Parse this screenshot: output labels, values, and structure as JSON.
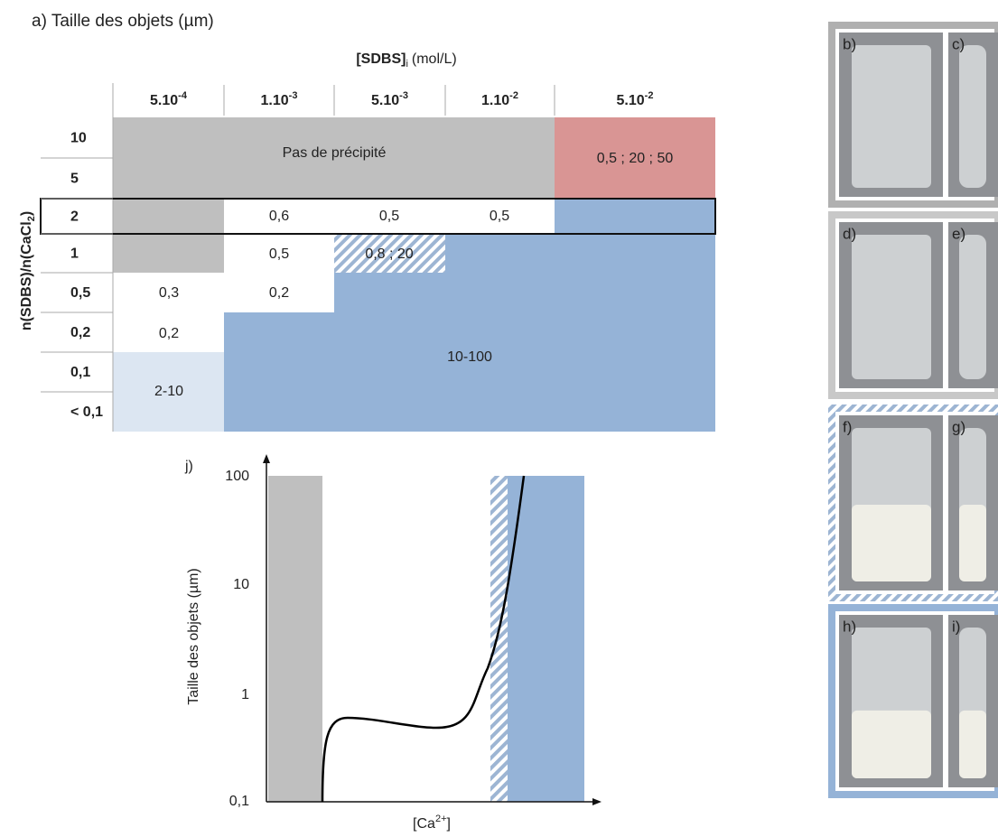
{
  "table": {
    "title": "a) Taille des objets (µm)",
    "column_header": {
      "name": "[SDBS]",
      "subscript": "i",
      "unit": "(mol/L)"
    },
    "columns": [
      {
        "mantissa": "5.10",
        "exponent": "-4"
      },
      {
        "mantissa": "1.10",
        "exponent": "-3"
      },
      {
        "mantissa": "5.10",
        "exponent": "-3"
      },
      {
        "mantissa": "1.10",
        "exponent": "-2"
      },
      {
        "mantissa": "5.10",
        "exponent": "-2"
      }
    ],
    "row_header": {
      "text": "n(SDBS)/n(CaCl",
      "subscript": "2",
      "end": ")"
    },
    "rows": [
      "10",
      "5",
      "2",
      "1",
      "0,5",
      "0,2",
      "0,1",
      "< 0,1"
    ],
    "cells": [
      "Pas de précipité",
      "0,5 ; 20 ; 50",
      "0,6",
      "0,5",
      "0,5",
      "0,5",
      "0,8 ; 20",
      "0,3",
      "0,2",
      "0,2",
      "10-100",
      "2-10"
    ]
  },
  "graph": {
    "label": "j)",
    "ylabel": "Taille des objets (µm)",
    "yticks": [
      "100",
      "10",
      "1",
      "0,1"
    ],
    "xlabel": {
      "text": "[Ca",
      "superscript": "2+",
      "end": "]"
    }
  },
  "photos": {
    "labels": [
      "b)",
      "c)",
      "d)",
      "e)",
      "f)",
      "g)",
      "h)",
      "i)"
    ]
  }
}
